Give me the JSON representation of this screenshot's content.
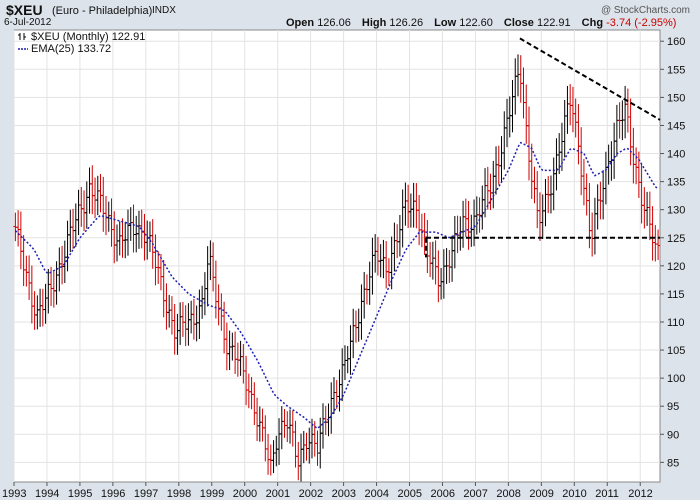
{
  "header": {
    "ticker": "$XEU",
    "name": "(Euro - Philadelphia)",
    "exchange": "INDX",
    "date": "6-Jul-2012",
    "watermark": "@ StockCharts.com",
    "open_label": "Open",
    "open": "126.06",
    "high_label": "High",
    "high": "126.26",
    "low_label": "Low",
    "low": "122.60",
    "close_label": "Close",
    "close": "122.91",
    "chg_label": "Chg",
    "chg": "-3.74 (-2.95%)"
  },
  "chart_data": {
    "type": "ohlc",
    "legend": [
      {
        "label": "$XEU (Monthly) 122.91",
        "kind": "price-bars"
      },
      {
        "label": "EMA(25) 133.72",
        "kind": "ema",
        "color": "#1f1fb4"
      }
    ],
    "legend_position": "top-left",
    "ylim": [
      81.5,
      162
    ],
    "y_ticks": [
      85,
      90,
      95,
      100,
      105,
      110,
      115,
      120,
      125,
      130,
      135,
      140,
      145,
      150,
      155,
      160
    ],
    "x_range": [
      1993.0,
      2012.6
    ],
    "x_ticks": [
      "1993",
      "1994",
      "1995",
      "1996",
      "1997",
      "1998",
      "1999",
      "2000",
      "2001",
      "2002",
      "2003",
      "2004",
      "2005",
      "2006",
      "2007",
      "2008",
      "2009",
      "2010",
      "2011",
      "2012"
    ],
    "grid": true,
    "colors": {
      "up": "#000000",
      "down": "#cc0000",
      "ema": "#1f1fb4",
      "trendline": "#000000"
    },
    "anchors": [
      [
        1993.0,
        127
      ],
      [
        1993.4,
        118
      ],
      [
        1993.7,
        111
      ],
      [
        1994.0,
        114
      ],
      [
        1994.5,
        122
      ],
      [
        1995.0,
        130
      ],
      [
        1995.3,
        134
      ],
      [
        1995.8,
        129
      ],
      [
        1996.2,
        124
      ],
      [
        1996.7,
        127
      ],
      [
        1997.0,
        126
      ],
      [
        1997.2,
        122
      ],
      [
        1997.6,
        114
      ],
      [
        1997.9,
        108
      ],
      [
        1998.3,
        110
      ],
      [
        1998.7,
        113
      ],
      [
        1998.9,
        121
      ],
      [
        1999.2,
        113
      ],
      [
        1999.5,
        105
      ],
      [
        1999.8,
        103
      ],
      [
        2000.1,
        99
      ],
      [
        2000.5,
        90
      ],
      [
        2000.8,
        84
      ],
      [
        2001.0,
        91
      ],
      [
        2001.3,
        92
      ],
      [
        2001.6,
        85
      ],
      [
        2001.9,
        90
      ],
      [
        2002.2,
        87
      ],
      [
        2002.6,
        96
      ],
      [
        2003.0,
        101
      ],
      [
        2003.5,
        113
      ],
      [
        2004.0,
        122
      ],
      [
        2004.3,
        120
      ],
      [
        2004.6,
        124
      ],
      [
        2004.9,
        131
      ],
      [
        2005.2,
        131
      ],
      [
        2005.5,
        122
      ],
      [
        2005.9,
        118
      ],
      [
        2006.3,
        122
      ],
      [
        2006.6,
        128
      ],
      [
        2007.0,
        128
      ],
      [
        2007.5,
        135
      ],
      [
        2008.0,
        146
      ],
      [
        2008.35,
        156
      ],
      [
        2008.6,
        141
      ],
      [
        2008.9,
        127
      ],
      [
        2009.2,
        133
      ],
      [
        2009.6,
        142
      ],
      [
        2009.9,
        150
      ],
      [
        2010.15,
        141
      ],
      [
        2010.5,
        124
      ],
      [
        2010.9,
        136
      ],
      [
        2011.3,
        144
      ],
      [
        2011.55,
        148
      ],
      [
        2011.85,
        138
      ],
      [
        2012.1,
        130
      ],
      [
        2012.5,
        123
      ]
    ],
    "ema_anchors": [
      [
        1993.0,
        126.5
      ],
      [
        1993.6,
        123
      ],
      [
        1994.0,
        118.5
      ],
      [
        1994.5,
        120
      ],
      [
        1995.0,
        125
      ],
      [
        1995.6,
        129
      ],
      [
        1996.2,
        128
      ],
      [
        1996.8,
        127
      ],
      [
        1997.2,
        124
      ],
      [
        1997.8,
        118
      ],
      [
        1998.3,
        115
      ],
      [
        1998.9,
        113
      ],
      [
        1999.4,
        112
      ],
      [
        1999.9,
        108
      ],
      [
        2000.4,
        103
      ],
      [
        2000.9,
        97
      ],
      [
        2001.3,
        95
      ],
      [
        2001.8,
        93
      ],
      [
        2002.2,
        91
      ],
      [
        2002.6,
        93
      ],
      [
        2003.0,
        97
      ],
      [
        2003.5,
        104
      ],
      [
        2004.0,
        111
      ],
      [
        2004.5,
        118
      ],
      [
        2004.9,
        123
      ],
      [
        2005.3,
        126
      ],
      [
        2005.8,
        126
      ],
      [
        2006.2,
        125
      ],
      [
        2006.6,
        126
      ],
      [
        2007.0,
        127
      ],
      [
        2007.5,
        132
      ],
      [
        2008.0,
        137
      ],
      [
        2008.35,
        142
      ],
      [
        2008.7,
        141
      ],
      [
        2009.0,
        137
      ],
      [
        2009.5,
        137
      ],
      [
        2009.9,
        141
      ],
      [
        2010.3,
        140
      ],
      [
        2010.6,
        136
      ],
      [
        2010.95,
        137
      ],
      [
        2011.3,
        140
      ],
      [
        2011.6,
        141
      ],
      [
        2011.95,
        139
      ],
      [
        2012.5,
        133.7
      ]
    ],
    "trendlines": [
      {
        "from": [
          2008.35,
          160.5
        ],
        "to": [
          2012.6,
          146
        ],
        "style": "dashed"
      },
      {
        "from": [
          2005.5,
          125
        ],
        "to": [
          2012.6,
          125
        ],
        "style": "dashed"
      },
      {
        "from": [
          2005.5,
          125
        ],
        "to": [
          2005.5,
          121.5
        ],
        "style": "dashed"
      }
    ]
  }
}
